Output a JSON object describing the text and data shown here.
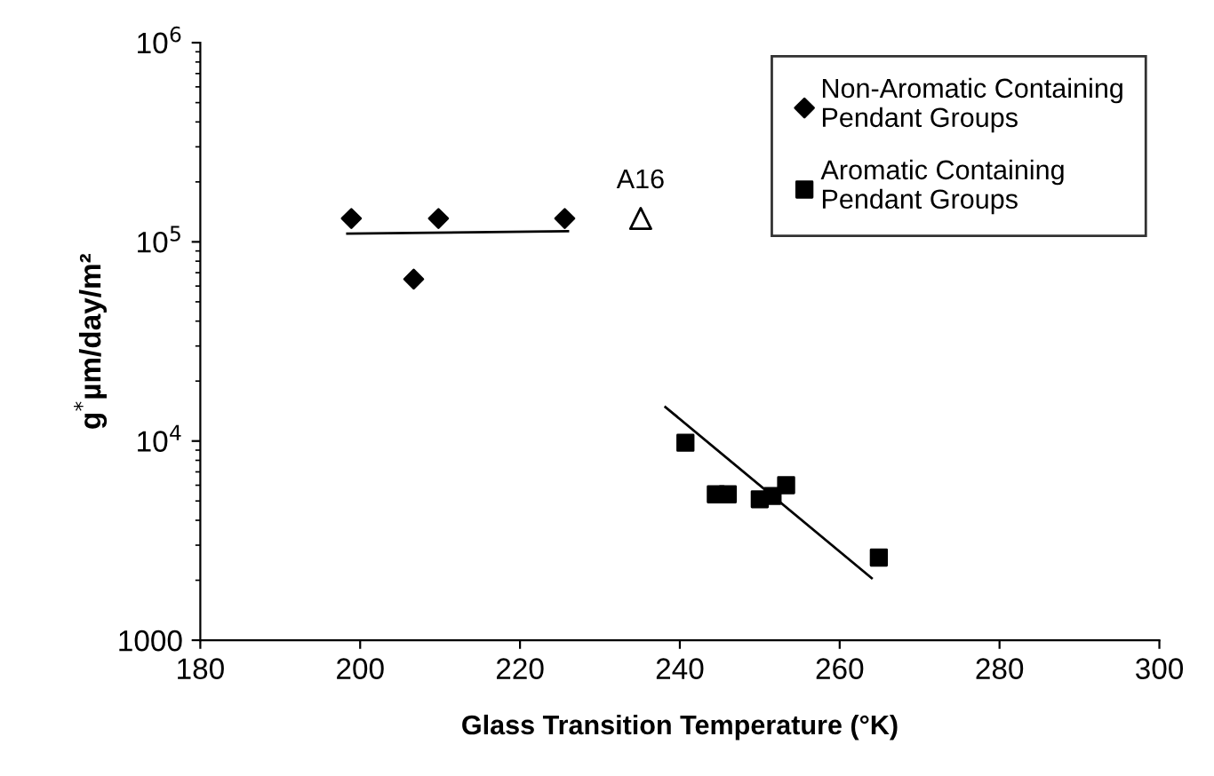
{
  "chart_data": {
    "type": "scatter",
    "xlabel": "Glass Transition Temperature (°K)",
    "ylabel": "g$^{*}$µm/day/m²",
    "log": "y",
    "xlim": [
      180,
      300
    ],
    "xticks": [
      180,
      200,
      220,
      240,
      260,
      280,
      300
    ],
    "ylim": [
      1000,
      1000000
    ],
    "yticks": [
      1000,
      {
        "value": 10000,
        "label": "10$^{4}$"
      },
      {
        "value": 100000,
        "label": "10$^{5}$"
      },
      {
        "value": 1000000,
        "label": "10$^{6}$"
      }
    ],
    "grid": false,
    "legend": "top right",
    "series": [
      {
        "name": "Non-Aromatic Containing\nPendant Groups",
        "color": "#000000",
        "marker": "diamond",
        "x": [
          198.9,
          209.8,
          225.6,
          206.7
        ],
        "values": [
          131000,
          131000,
          131000,
          65000
        ]
      },
      {
        "name": "Aromatic Containing\nPendant Groups",
        "color": "#000000",
        "marker": "square",
        "x": [
          240.7,
          244.5,
          246,
          250,
          251.6,
          253.3,
          264.9
        ],
        "values": [
          9800,
          5400,
          5400,
          5100,
          5300,
          6000,
          2600
        ]
      },
      {
        "color": "#000000",
        "marker": "triangle",
        "x": [
          235.1
        ],
        "values": [
          131000
        ]
      },
      {
        "type": "line",
        "color": "#000000",
        "marker": "none",
        "x": [
          198.4,
          226
        ],
        "values": [
          110000,
          113000
        ]
      },
      {
        "type": "line",
        "color": "#000000",
        "marker": "none",
        "x": [
          238.2,
          264
        ],
        "values": [
          14800,
          2050
        ]
      }
    ],
    "annotations": [
      {
        "text": "A16",
        "x": 235.1,
        "y": 131000
      }
    ]
  }
}
